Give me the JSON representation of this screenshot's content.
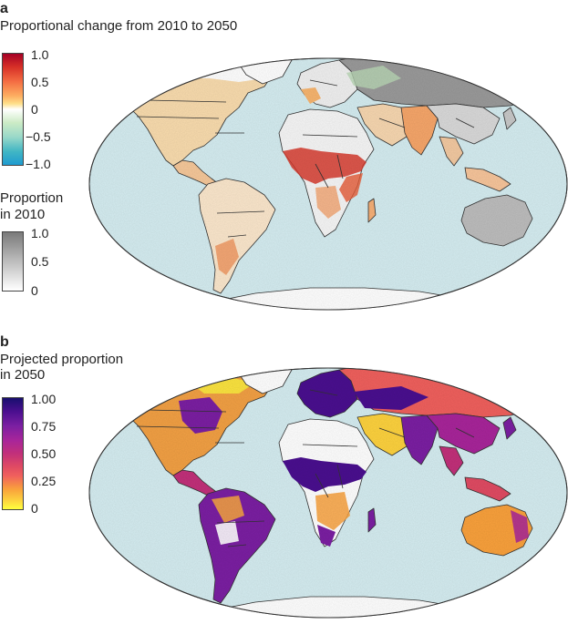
{
  "panel_a": {
    "letter": "a",
    "title": "Proportional change from 2010 to 2050",
    "change_legend": {
      "ticks": [
        "1.0",
        "0.5",
        "0",
        "−0.5",
        "−1.0"
      ],
      "colors": [
        "#a50026",
        "#f46d43",
        "#fee08b",
        "#ffffff",
        "#99d8c9",
        "#1f9bd0"
      ]
    },
    "baseline_legend": {
      "title_line1": "Proportion",
      "title_line2": "in 2010",
      "ticks": [
        "1.0",
        "0.5",
        "0"
      ],
      "colors": [
        "#7a7a7a",
        "#ffffff"
      ]
    }
  },
  "panel_b": {
    "letter": "b",
    "title_line1": "Projected proportion",
    "title_line2": "in 2050",
    "legend": {
      "ticks": [
        "1.00",
        "0.75",
        "0.50",
        "0.25",
        "0"
      ],
      "colors": [
        "#180f6e",
        "#7b1fa2",
        "#c2307a",
        "#f0605d",
        "#f9a13c",
        "#ffff3d"
      ]
    }
  },
  "map_style": {
    "ocean": "#d5edf1",
    "land_base": "#ffffff",
    "border": "#333333"
  }
}
